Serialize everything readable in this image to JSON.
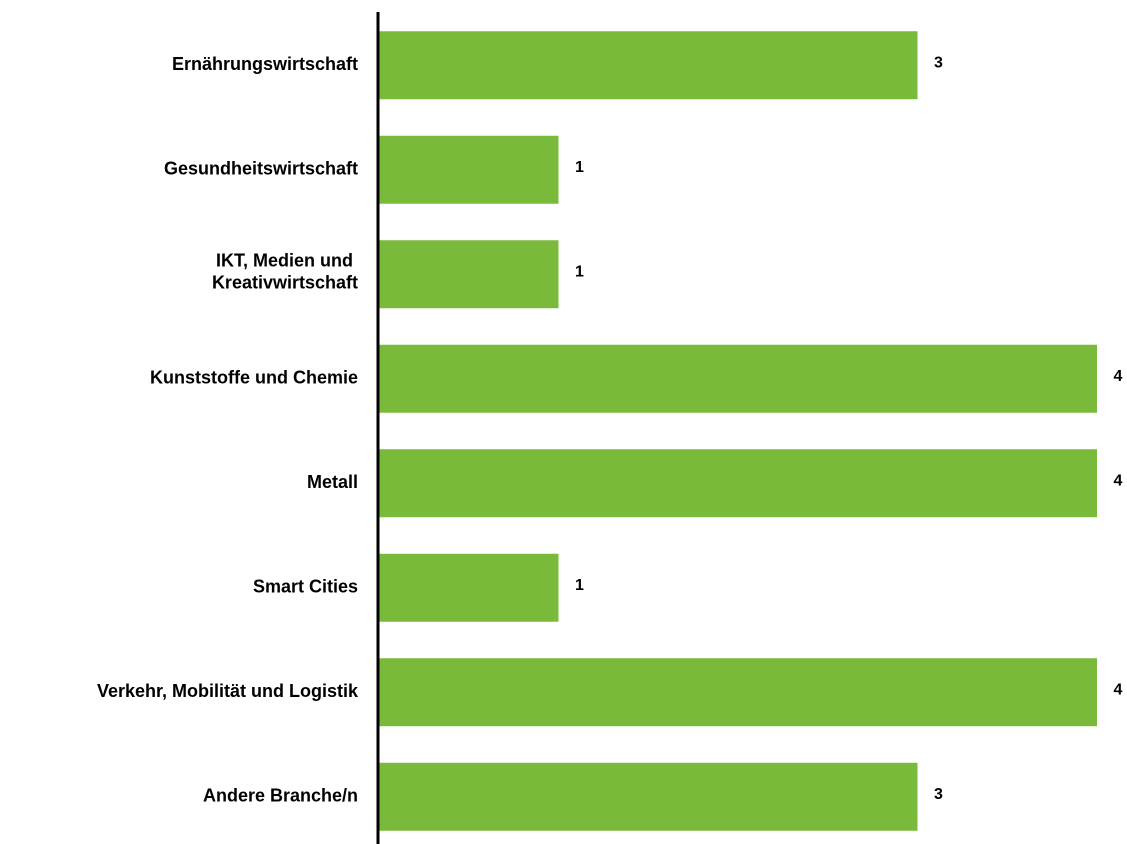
{
  "chart_data": {
    "type": "barh",
    "categories": [
      "Ernährungswirtschaft",
      "Gesundheitswirtschaft",
      "IKT, Medien und \nKreativwirtschaft",
      "Kunststoffe und Chemie",
      "Metall",
      "Smart Cities",
      "Verkehr, Mobilität und Logistik",
      "Andere Branche/n"
    ],
    "values": [
      3,
      1,
      1,
      4,
      4,
      1,
      4,
      3
    ],
    "color": "#7aba3a",
    "xlim": [
      0,
      4
    ]
  }
}
